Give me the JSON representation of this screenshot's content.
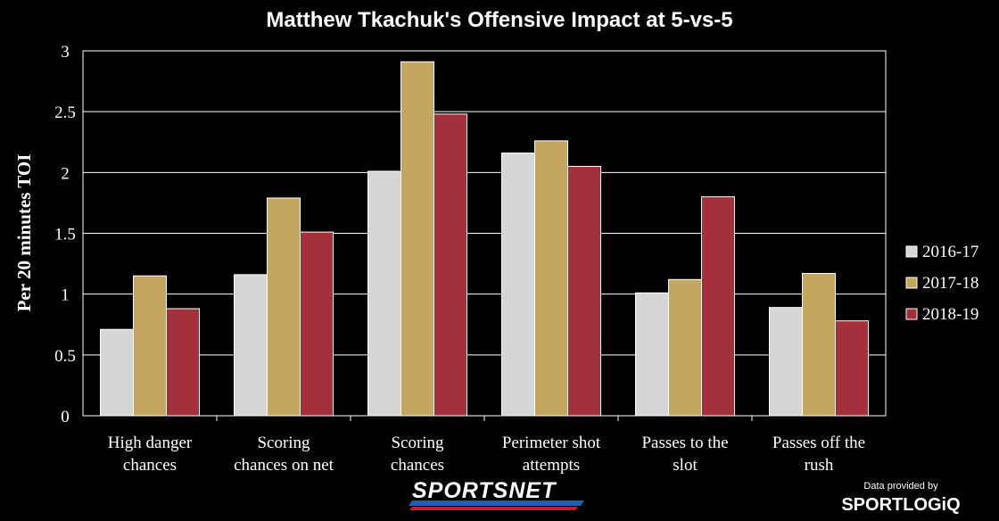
{
  "chart_data": {
    "type": "bar",
    "title": "Matthew Tkachuk's Offensive Impact at 5-vs-5",
    "xlabel": "",
    "ylabel": "Per 20 minutes TOI",
    "ylim": [
      0,
      3
    ],
    "yticks": [
      "0",
      "0.5",
      "1",
      "1.5",
      "2",
      "2.5",
      "3"
    ],
    "grid": true,
    "legend_position": "right",
    "categories": [
      [
        "High danger",
        "chances"
      ],
      [
        "Scoring",
        "chances on net"
      ],
      [
        "Scoring",
        "chances"
      ],
      [
        "Perimeter shot",
        "attempts"
      ],
      [
        "Passes to the",
        "slot"
      ],
      [
        "Passes off the",
        "rush"
      ]
    ],
    "series": [
      {
        "name": "2016-17",
        "color": "#d6d6d6",
        "values": [
          0.71,
          1.16,
          2.01,
          2.16,
          1.01,
          0.89
        ]
      },
      {
        "name": "2017-18",
        "color": "#c4a75f",
        "values": [
          1.15,
          1.79,
          2.91,
          2.26,
          1.12,
          1.17
        ]
      },
      {
        "name": "2018-19",
        "color": "#a3303a",
        "values": [
          0.88,
          1.51,
          2.48,
          2.05,
          1.8,
          0.78
        ]
      }
    ]
  },
  "branding": {
    "logo_text": "SPORTSNET",
    "credit_label": "Data provided by",
    "credit_logo_text": "SPORTLOGiQ"
  }
}
